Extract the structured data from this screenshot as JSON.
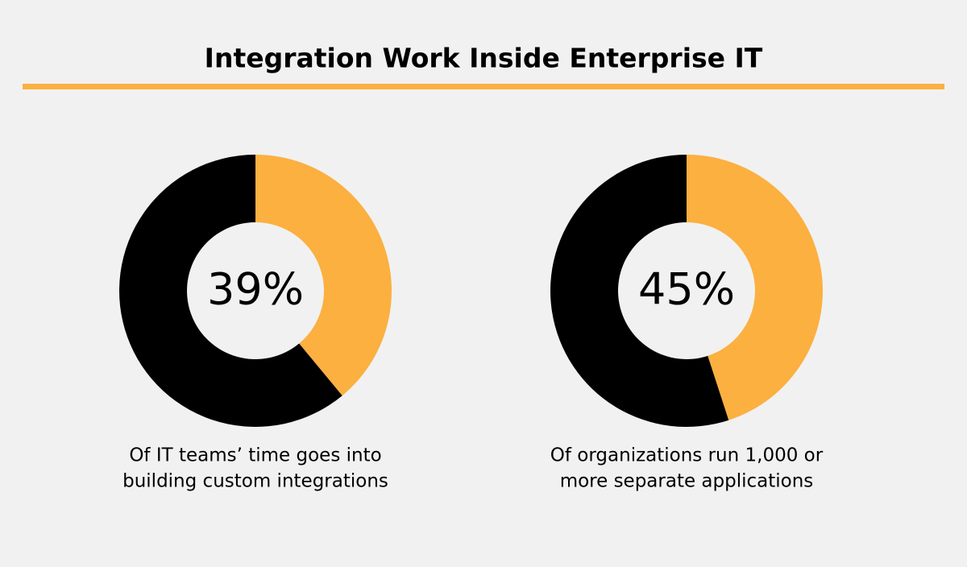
{
  "title": "Integration Work Inside Enterprise IT",
  "chart_data": [
    {
      "type": "donut",
      "values": [
        39,
        61
      ],
      "value_labels": [
        "39%",
        null
      ],
      "colors": [
        "#fbb040",
        "#000000"
      ],
      "caption": [
        "Of IT teams’ time goes into",
        "building custom integrations"
      ]
    },
    {
      "type": "donut",
      "values": [
        45,
        55
      ],
      "value_labels": [
        "45%",
        null
      ],
      "colors": [
        "#fbb040",
        "#000000"
      ],
      "caption": [
        "Of organizations run 1,000 or",
        "more separate applications"
      ]
    }
  ]
}
